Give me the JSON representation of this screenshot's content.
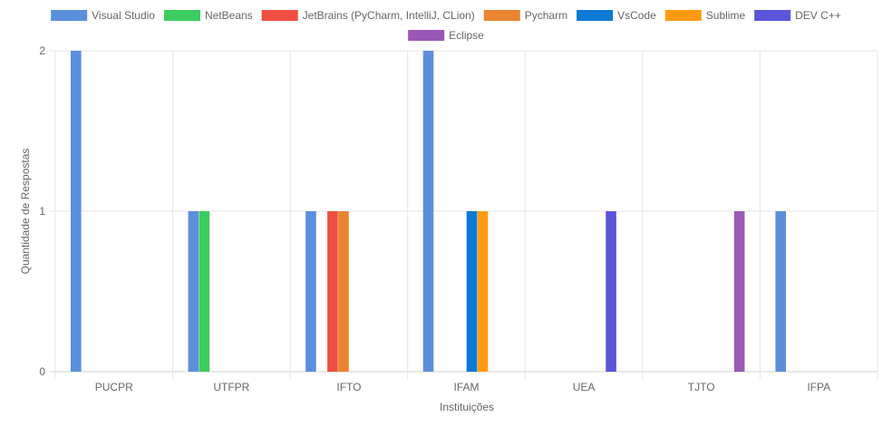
{
  "chart_data": {
    "type": "bar",
    "title": "",
    "xlabel": "Instituições",
    "ylabel": "Quantidade de Respostas",
    "ylim": [
      0,
      2
    ],
    "yticks": [
      "0",
      "1",
      "2"
    ],
    "grid": true,
    "legend_position": "top",
    "categories": [
      "PUCPR",
      "UTFPR",
      "IFTO",
      "IFAM",
      "UEA",
      "TJTO",
      "IFPA"
    ],
    "series": [
      {
        "name": "Visual Studio",
        "color": "#5b8fdb",
        "values": [
          2,
          1,
          1,
          2,
          0,
          0,
          1
        ]
      },
      {
        "name": "NetBeans",
        "color": "#3ccc5f",
        "values": [
          0,
          1,
          0,
          0,
          0,
          0,
          0
        ]
      },
      {
        "name": "JetBrains (PyCharm, IntelliJ, CLion)",
        "color": "#ee4f40",
        "values": [
          0,
          0,
          1,
          0,
          0,
          0,
          0
        ]
      },
      {
        "name": "Pycharm",
        "color": "#ea8430",
        "values": [
          0,
          0,
          1,
          0,
          0,
          0,
          0
        ]
      },
      {
        "name": "VsCode",
        "color": "#0b79d6",
        "values": [
          0,
          0,
          0,
          1,
          0,
          0,
          0
        ]
      },
      {
        "name": "Sublime",
        "color": "#ff9b10",
        "values": [
          0,
          0,
          0,
          1,
          0,
          0,
          0
        ]
      },
      {
        "name": "DEV C++",
        "color": "#5a55d8",
        "values": [
          0,
          0,
          0,
          0,
          1,
          0,
          0
        ]
      },
      {
        "name": "Eclipse",
        "color": "#9a58b7",
        "values": [
          0,
          0,
          0,
          0,
          0,
          1,
          0
        ]
      }
    ]
  }
}
